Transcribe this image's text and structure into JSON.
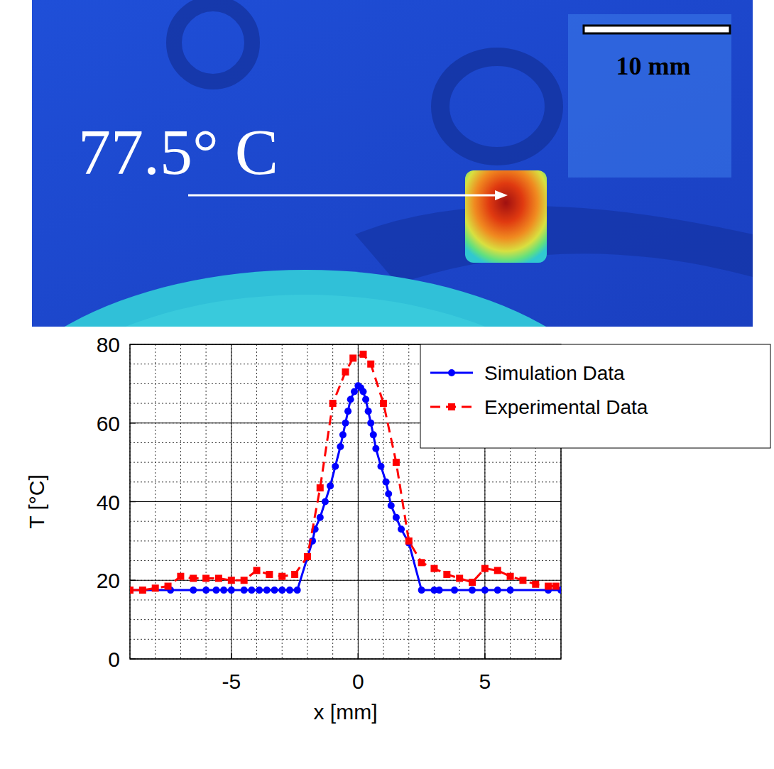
{
  "image": {
    "temperature_label": "77.5° C",
    "scale_bar": "10 mm"
  },
  "chart_data": {
    "type": "line",
    "x_label": "x [mm]",
    "y_label": "T [°C]",
    "xlim": [
      -9,
      8
    ],
    "ylim": [
      0,
      80
    ],
    "xticks": [
      -5,
      0,
      5
    ],
    "yticks": [
      0,
      20,
      40,
      60,
      80
    ],
    "grid": true,
    "legend": "upper right",
    "series": [
      {
        "name": "Simulation Data",
        "color": "#0000ff",
        "marker": "circle",
        "line_style": "solid",
        "x": [
          -9,
          -7.4,
          -6.5,
          -6,
          -5.6,
          -5.3,
          -5,
          -4.5,
          -4.2,
          -3.9,
          -3.6,
          -3.3,
          -3,
          -2.7,
          -2.4,
          -1.8,
          -1.7,
          -1.5,
          -1.3,
          -1.1,
          -0.9,
          -0.7,
          -0.6,
          -0.5,
          -0.4,
          -0.3,
          -0.15,
          0,
          0.1,
          0.2,
          0.3,
          0.4,
          0.5,
          0.6,
          0.7,
          0.9,
          1.1,
          1.2,
          1.3,
          1.5,
          1.7,
          2,
          2.5,
          3,
          3.2,
          3.8,
          4.5,
          5,
          5.5,
          6,
          7.5,
          8
        ],
        "values": [
          17.5,
          17.5,
          17.5,
          17.5,
          17.5,
          17.5,
          17.5,
          17.5,
          17.5,
          17.5,
          17.5,
          17.5,
          17.5,
          17.5,
          17.5,
          30,
          33,
          36,
          40,
          44,
          49,
          54,
          57,
          60,
          63,
          66,
          68,
          69.5,
          69,
          68,
          66,
          63,
          60,
          57,
          53.5,
          49,
          45,
          42,
          39,
          36,
          33,
          29.5,
          17.5,
          17.5,
          17.5,
          17.5,
          17.5,
          17.5,
          17.5,
          17.5,
          17.5,
          17.5
        ]
      },
      {
        "name": "Experimental Data",
        "color": "#ff0000",
        "marker": "square",
        "line_style": "dashed",
        "x": [
          -9,
          -8.5,
          -8,
          -7.5,
          -7,
          -6.5,
          -6,
          -5.5,
          -5,
          -4.5,
          -4,
          -3.5,
          -3,
          -2.5,
          -2,
          -1.5,
          -1,
          -0.5,
          -0.2,
          0.2,
          0.5,
          1,
          1.5,
          2,
          2.5,
          3,
          3.5,
          4,
          4.5,
          5,
          5.5,
          6,
          6.5,
          7,
          7.5,
          7.8
        ],
        "values": [
          17.5,
          17.5,
          18,
          18.5,
          21,
          20.5,
          20.5,
          20.5,
          20,
          20,
          22.5,
          21.5,
          21,
          21.5,
          26,
          43.5,
          65,
          73,
          76.5,
          77.5,
          75,
          65,
          50,
          30,
          24.5,
          23,
          21.5,
          20.5,
          19.5,
          23,
          22.5,
          21,
          20,
          19,
          18.5,
          18.5
        ]
      }
    ]
  }
}
